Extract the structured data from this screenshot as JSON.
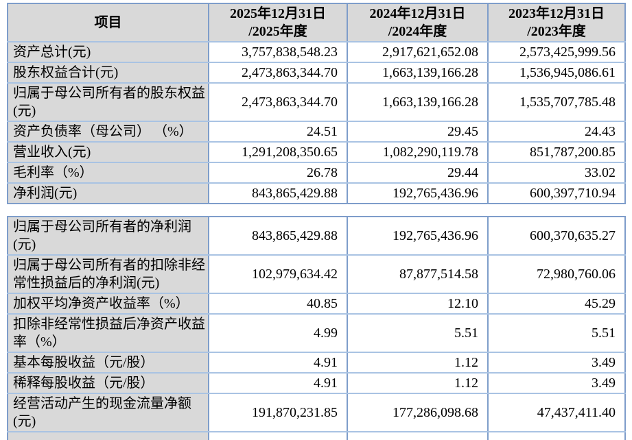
{
  "colors": {
    "label_fill": "#d9d9d9",
    "header_fill": "#d9d9d9",
    "border_vertical": "#7e9dca",
    "border_horizontal": "#a9c3e3",
    "text": "#000000",
    "page_background": "#ffffff"
  },
  "header": {
    "item_label": "项目",
    "periods": [
      {
        "line1": "2025年12月31日",
        "line2": "/2025年度"
      },
      {
        "line1": "2024年12月31日",
        "line2": "/2024年度"
      },
      {
        "line1": "2023年12月31日",
        "line2": "/2023年度"
      }
    ]
  },
  "section1": {
    "rows": [
      {
        "label": "资产总计(元)",
        "y2025": "3,757,838,548.23",
        "y2024": "2,917,621,652.08",
        "y2023": "2,573,425,999.56"
      },
      {
        "label": "股东权益合计(元)",
        "y2025": "2,473,863,344.70",
        "y2024": "1,663,139,166.28",
        "y2023": "1,536,945,086.61"
      },
      {
        "label": "归属于母公司所有者的股东权益(元)",
        "y2025": "2,473,863,344.70",
        "y2024": "1,663,139,166.28",
        "y2023": "1,535,707,785.48"
      },
      {
        "label": "资产负债率（母公司） （%）",
        "y2025": "24.51",
        "y2024": "29.45",
        "y2023": "24.43"
      },
      {
        "label": "营业收入(元)",
        "y2025": "1,291,208,350.65",
        "y2024": "1,082,290,119.78",
        "y2023": "851,787,200.85"
      },
      {
        "label": "毛利率（%）",
        "y2025": "26.78",
        "y2024": "29.44",
        "y2023": "33.02"
      },
      {
        "label": "净利润(元)",
        "y2025": "843,865,429.88",
        "y2024": "192,765,436.96",
        "y2023": "600,397,710.94"
      }
    ]
  },
  "section2": {
    "rows": [
      {
        "label": "归属于母公司所有者的净利润(元)",
        "y2025": "843,865,429.88",
        "y2024": "192,765,436.96",
        "y2023": "600,370,635.27"
      },
      {
        "label": "归属于母公司所有者的扣除非经常性损益后的净利润(元)",
        "y2025": "102,979,634.42",
        "y2024": "87,877,514.58",
        "y2023": "72,980,760.06"
      },
      {
        "label": "加权平均净资产收益率（%）",
        "y2025": "40.85",
        "y2024": "12.10",
        "y2023": "45.29"
      },
      {
        "label": "扣除非经常性损益后净资产收益率（%）",
        "y2025": "4.99",
        "y2024": "5.51",
        "y2023": "5.51"
      },
      {
        "label": "基本每股收益（元/股）",
        "y2025": "4.91",
        "y2024": "1.12",
        "y2023": "3.49"
      },
      {
        "label": "稀释每股收益（元/股）",
        "y2025": "4.91",
        "y2024": "1.12",
        "y2023": "3.49"
      },
      {
        "label": "经营活动产生的现金流量净额(元)",
        "y2025": "191,870,231.85",
        "y2024": "177,286,098.68",
        "y2023": "47,437,411.40"
      }
    ]
  }
}
